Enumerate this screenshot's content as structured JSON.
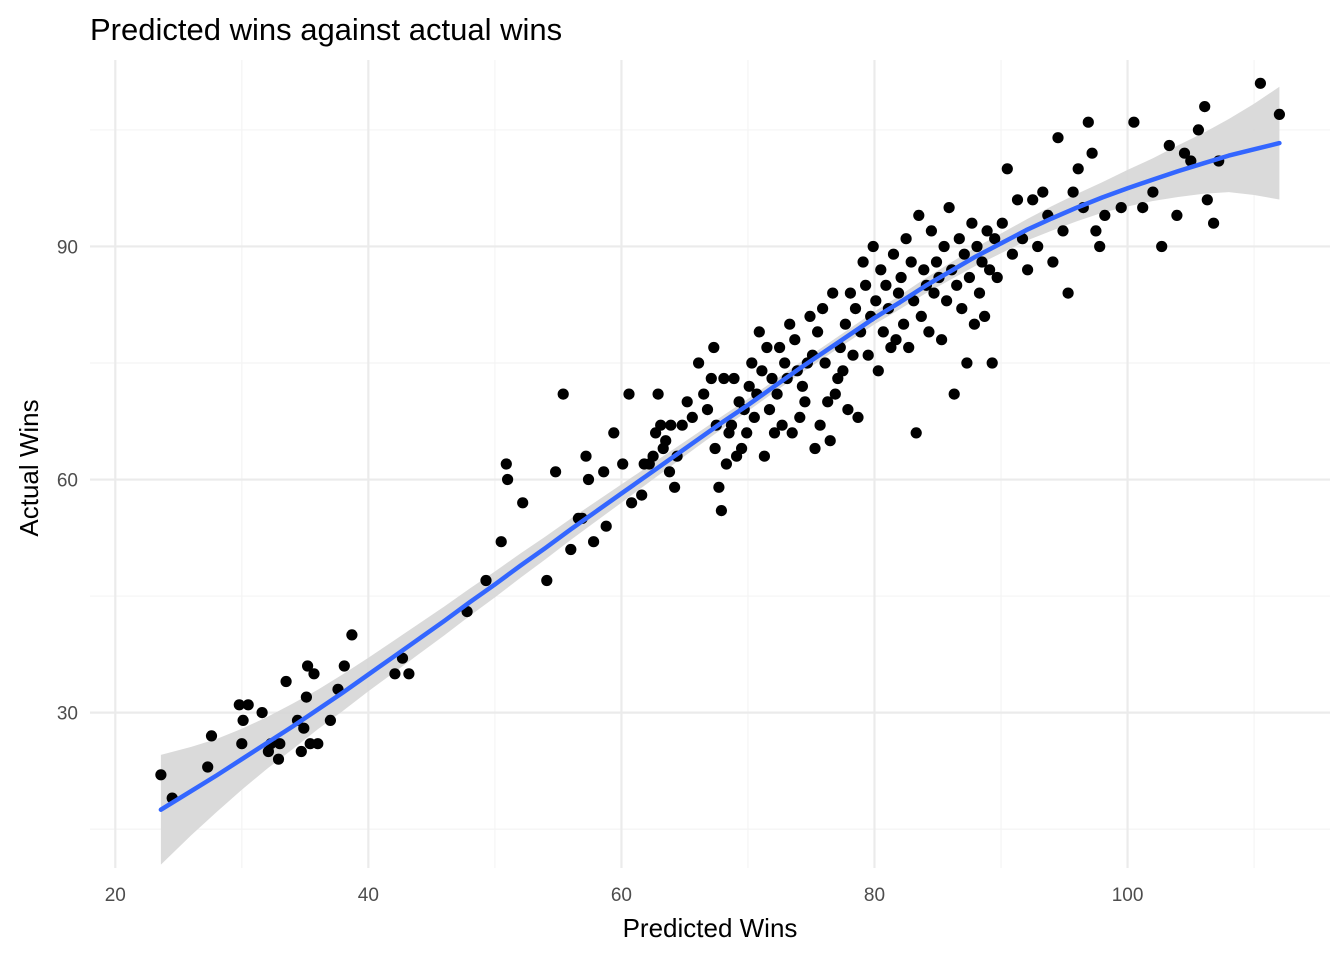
{
  "chart_data": {
    "type": "scatter",
    "title": "Predicted wins against actual wins",
    "xlabel": "Predicted Wins",
    "ylabel": "Actual Wins",
    "xlim": [
      18,
      116
    ],
    "ylim": [
      10,
      114
    ],
    "x_ticks": [
      20,
      40,
      60,
      80,
      100
    ],
    "y_ticks": [
      30,
      60,
      90
    ],
    "grid": true,
    "legend": "none",
    "point_color": "#000000",
    "smooth_color": "#3366FF",
    "ribbon_color": "#d6d6d6",
    "points": [
      [
        23.6,
        22
      ],
      [
        24.5,
        19
      ],
      [
        27.3,
        23
      ],
      [
        27.6,
        27
      ],
      [
        29.8,
        31
      ],
      [
        30.0,
        26
      ],
      [
        30.1,
        29
      ],
      [
        30.5,
        31
      ],
      [
        31.6,
        30
      ],
      [
        32.1,
        25
      ],
      [
        32.3,
        26
      ],
      [
        32.9,
        24
      ],
      [
        33.0,
        26
      ],
      [
        33.5,
        34
      ],
      [
        34.4,
        29
      ],
      [
        34.7,
        25
      ],
      [
        34.9,
        28
      ],
      [
        35.1,
        32
      ],
      [
        35.2,
        36
      ],
      [
        35.4,
        26
      ],
      [
        35.7,
        35
      ],
      [
        36.0,
        26
      ],
      [
        37.0,
        29
      ],
      [
        37.6,
        33
      ],
      [
        38.1,
        36
      ],
      [
        38.7,
        40
      ],
      [
        42.1,
        35
      ],
      [
        42.7,
        37
      ],
      [
        43.2,
        35
      ],
      [
        47.8,
        43
      ],
      [
        49.3,
        47
      ],
      [
        50.5,
        52
      ],
      [
        50.9,
        62
      ],
      [
        51.0,
        60
      ],
      [
        52.2,
        57
      ],
      [
        54.1,
        47
      ],
      [
        54.8,
        61
      ],
      [
        55.4,
        71
      ],
      [
        56.0,
        51
      ],
      [
        56.6,
        55
      ],
      [
        56.9,
        55
      ],
      [
        57.2,
        63
      ],
      [
        57.4,
        60
      ],
      [
        57.8,
        52
      ],
      [
        58.6,
        61
      ],
      [
        58.8,
        54
      ],
      [
        59.4,
        66
      ],
      [
        60.1,
        62
      ],
      [
        60.6,
        71
      ],
      [
        60.8,
        57
      ],
      [
        61.6,
        58
      ],
      [
        61.8,
        62
      ],
      [
        62.2,
        62
      ],
      [
        62.5,
        63
      ],
      [
        62.7,
        66
      ],
      [
        62.9,
        71
      ],
      [
        63.1,
        67
      ],
      [
        63.3,
        64
      ],
      [
        63.5,
        65
      ],
      [
        63.8,
        61
      ],
      [
        63.9,
        67
      ],
      [
        64.2,
        59
      ],
      [
        64.4,
        63
      ],
      [
        64.8,
        67
      ],
      [
        65.2,
        70
      ],
      [
        65.6,
        68
      ],
      [
        66.1,
        75
      ],
      [
        66.5,
        71
      ],
      [
        66.8,
        69
      ],
      [
        67.1,
        73
      ],
      [
        67.3,
        77
      ],
      [
        67.4,
        64
      ],
      [
        67.5,
        67
      ],
      [
        67.7,
        59
      ],
      [
        67.9,
        56
      ],
      [
        68.1,
        73
      ],
      [
        68.3,
        62
      ],
      [
        68.5,
        66
      ],
      [
        68.7,
        67
      ],
      [
        68.9,
        73
      ],
      [
        69.1,
        63
      ],
      [
        69.3,
        70
      ],
      [
        69.5,
        64
      ],
      [
        69.7,
        69
      ],
      [
        69.9,
        66
      ],
      [
        70.1,
        72
      ],
      [
        70.3,
        75
      ],
      [
        70.5,
        68
      ],
      [
        70.7,
        71
      ],
      [
        70.9,
        79
      ],
      [
        71.1,
        74
      ],
      [
        71.3,
        63
      ],
      [
        71.5,
        77
      ],
      [
        71.7,
        69
      ],
      [
        71.9,
        73
      ],
      [
        72.1,
        66
      ],
      [
        72.3,
        71
      ],
      [
        72.5,
        77
      ],
      [
        72.7,
        67
      ],
      [
        72.9,
        75
      ],
      [
        73.1,
        73
      ],
      [
        73.3,
        80
      ],
      [
        73.5,
        66
      ],
      [
        73.7,
        78
      ],
      [
        73.9,
        74
      ],
      [
        74.1,
        68
      ],
      [
        74.3,
        72
      ],
      [
        74.5,
        70
      ],
      [
        74.7,
        75
      ],
      [
        74.9,
        81
      ],
      [
        75.1,
        76
      ],
      [
        75.3,
        64
      ],
      [
        75.5,
        79
      ],
      [
        75.7,
        67
      ],
      [
        75.9,
        82
      ],
      [
        76.1,
        75
      ],
      [
        76.3,
        70
      ],
      [
        76.5,
        65
      ],
      [
        76.7,
        84
      ],
      [
        76.9,
        71
      ],
      [
        77.1,
        73
      ],
      [
        77.3,
        77
      ],
      [
        77.5,
        74
      ],
      [
        77.7,
        80
      ],
      [
        77.9,
        69
      ],
      [
        78.1,
        84
      ],
      [
        78.3,
        76
      ],
      [
        78.5,
        82
      ],
      [
        78.7,
        68
      ],
      [
        78.9,
        79
      ],
      [
        79.1,
        88
      ],
      [
        79.3,
        85
      ],
      [
        79.5,
        76
      ],
      [
        79.7,
        81
      ],
      [
        79.9,
        90
      ],
      [
        80.1,
        83
      ],
      [
        80.3,
        74
      ],
      [
        80.5,
        87
      ],
      [
        80.7,
        79
      ],
      [
        80.9,
        85
      ],
      [
        81.1,
        82
      ],
      [
        81.3,
        77
      ],
      [
        81.5,
        89
      ],
      [
        81.7,
        78
      ],
      [
        81.9,
        84
      ],
      [
        82.1,
        86
      ],
      [
        82.3,
        80
      ],
      [
        82.5,
        91
      ],
      [
        82.7,
        77
      ],
      [
        82.9,
        88
      ],
      [
        83.1,
        83
      ],
      [
        83.3,
        66
      ],
      [
        83.5,
        94
      ],
      [
        83.7,
        81
      ],
      [
        83.9,
        87
      ],
      [
        84.1,
        85
      ],
      [
        84.3,
        79
      ],
      [
        84.5,
        92
      ],
      [
        84.7,
        84
      ],
      [
        84.9,
        88
      ],
      [
        85.1,
        86
      ],
      [
        85.3,
        78
      ],
      [
        85.5,
        90
      ],
      [
        85.7,
        83
      ],
      [
        85.9,
        95
      ],
      [
        86.1,
        87
      ],
      [
        86.3,
        71
      ],
      [
        86.5,
        85
      ],
      [
        86.7,
        91
      ],
      [
        86.9,
        82
      ],
      [
        87.1,
        89
      ],
      [
        87.3,
        75
      ],
      [
        87.5,
        86
      ],
      [
        87.7,
        93
      ],
      [
        87.9,
        80
      ],
      [
        88.1,
        90
      ],
      [
        88.3,
        84
      ],
      [
        88.5,
        88
      ],
      [
        88.7,
        81
      ],
      [
        88.9,
        92
      ],
      [
        89.1,
        87
      ],
      [
        89.3,
        75
      ],
      [
        89.5,
        91
      ],
      [
        89.7,
        86
      ],
      [
        90.1,
        93
      ],
      [
        90.5,
        100
      ],
      [
        90.9,
        89
      ],
      [
        91.3,
        96
      ],
      [
        91.7,
        91
      ],
      [
        92.1,
        87
      ],
      [
        92.5,
        96
      ],
      [
        92.9,
        90
      ],
      [
        93.3,
        97
      ],
      [
        93.7,
        94
      ],
      [
        94.1,
        88
      ],
      [
        94.5,
        104
      ],
      [
        94.9,
        92
      ],
      [
        95.3,
        84
      ],
      [
        95.7,
        97
      ],
      [
        96.1,
        100
      ],
      [
        96.5,
        95
      ],
      [
        96.9,
        106
      ],
      [
        97.2,
        102
      ],
      [
        97.5,
        92
      ],
      [
        97.8,
        90
      ],
      [
        98.2,
        94
      ],
      [
        99.5,
        95
      ],
      [
        100.5,
        106
      ],
      [
        101.2,
        95
      ],
      [
        102.0,
        97
      ],
      [
        102.7,
        90
      ],
      [
        103.3,
        103
      ],
      [
        103.9,
        94
      ],
      [
        104.5,
        102
      ],
      [
        105.0,
        101
      ],
      [
        105.6,
        105
      ],
      [
        106.1,
        108
      ],
      [
        106.3,
        96
      ],
      [
        106.8,
        93
      ],
      [
        107.2,
        101
      ],
      [
        110.5,
        111
      ],
      [
        112.0,
        107
      ]
    ],
    "smooth_line": {
      "x": [
        23.6,
        26,
        28,
        30,
        32,
        34,
        36,
        38,
        40,
        42,
        44,
        46,
        48,
        50,
        52,
        54,
        56,
        58,
        60,
        62,
        64,
        66,
        68,
        70,
        72,
        74,
        76,
        78,
        80,
        82,
        84,
        86,
        88,
        90,
        92,
        94,
        96,
        98,
        100,
        102,
        104,
        106,
        108,
        110,
        112
      ],
      "y": [
        17.5,
        19.9,
        21.9,
        24.0,
        26.1,
        28.2,
        30.4,
        32.6,
        34.9,
        37.2,
        39.5,
        41.8,
        44.2,
        46.5,
        48.9,
        51.2,
        53.6,
        55.9,
        58.2,
        60.5,
        62.8,
        65.1,
        67.4,
        69.6,
        71.9,
        74.2,
        76.4,
        78.6,
        80.8,
        82.8,
        84.9,
        86.8,
        88.7,
        90.4,
        92.1,
        93.6,
        95.0,
        96.3,
        97.5,
        98.6,
        99.7,
        100.7,
        101.7,
        102.5,
        103.3
      ],
      "se": [
        3.6,
        2.9,
        2.4,
        2.0,
        1.7,
        1.5,
        1.3,
        1.2,
        1.1,
        1.05,
        1.0,
        0.95,
        0.9,
        0.85,
        0.8,
        0.75,
        0.7,
        0.65,
        0.6,
        0.55,
        0.5,
        0.45,
        0.42,
        0.4,
        0.38,
        0.38,
        0.38,
        0.4,
        0.42,
        0.45,
        0.5,
        0.55,
        0.6,
        0.65,
        0.7,
        0.8,
        0.9,
        1.0,
        1.2,
        1.4,
        1.7,
        2.0,
        2.4,
        3.0,
        3.7
      ]
    }
  }
}
